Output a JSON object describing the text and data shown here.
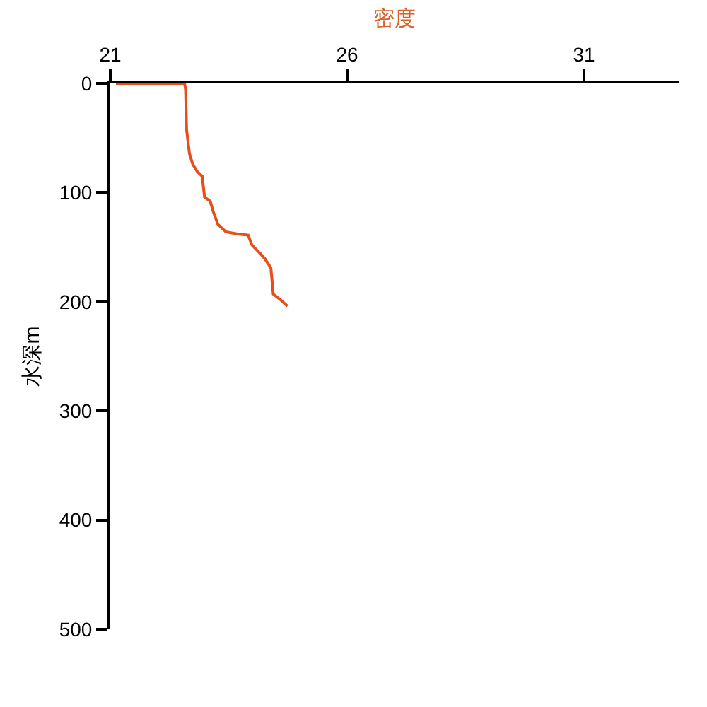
{
  "chart_data": {
    "type": "line",
    "xlabel": "密度",
    "ylabel": "水深m",
    "series": [
      {
        "color": "#e84e1b",
        "x": [
          21.12,
          22.57,
          22.59,
          22.61,
          22.67,
          22.74,
          22.84,
          22.94,
          22.99,
          23.11,
          23.17,
          23.27,
          23.44,
          23.69,
          23.91,
          23.99,
          24.19,
          24.27,
          24.39,
          24.44,
          24.59,
          24.74
        ],
        "values": [
          0,
          0,
          6,
          42,
          64,
          74,
          81,
          85,
          104,
          108,
          117,
          129,
          136,
          138,
          139,
          148,
          157,
          161,
          169,
          193,
          198,
          204
        ]
      }
    ],
    "xlim": [
      21,
      33
    ],
    "xticks": [
      21,
      26,
      31
    ],
    "ylim": [
      500,
      0
    ],
    "yticks": [
      0,
      100,
      200,
      300,
      400,
      500
    ],
    "marker": "none",
    "line_style": "solid"
  }
}
